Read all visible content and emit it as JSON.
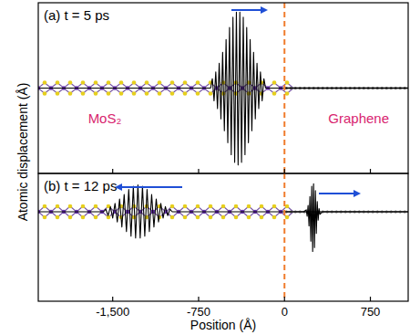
{
  "chart_data": [
    {
      "type": "line",
      "title": "(a) t = 5 ps",
      "ylabel": "Atomic displacement (Å)",
      "region_labels": [
        "MoS₂",
        "Graphene"
      ],
      "x": [
        -2150,
        -645,
        -630,
        -615,
        -600,
        -585,
        -570,
        -555,
        -540,
        -525,
        -510,
        -495,
        -480,
        -465,
        -450,
        -435,
        -420,
        -405,
        -390,
        -375,
        -360,
        -345,
        -330,
        -315,
        -300,
        -285,
        -270,
        -255,
        -240,
        -225,
        -210,
        -195,
        -180,
        -165,
        1080
      ],
      "series": [
        {
          "color": "#000000",
          "values": [
            0,
            0,
            0.11,
            -0.15,
            0.19,
            -0.24,
            0.29,
            -0.36,
            0.42,
            -0.5,
            0.57,
            -0.64,
            0.71,
            -0.78,
            0.83,
            -0.87,
            0.89,
            -0.9,
            0.89,
            -0.87,
            0.83,
            -0.78,
            0.71,
            -0.64,
            0.57,
            -0.5,
            0.42,
            -0.36,
            0.29,
            -0.24,
            0.19,
            -0.15,
            0.11,
            0,
            0
          ]
        }
      ],
      "xlim": [
        -2150,
        1080
      ],
      "ylim": [
        -1,
        1
      ],
      "xticks": [
        -1500,
        -750,
        0,
        750
      ],
      "tick_labels": false,
      "grid": false,
      "reference_line": {
        "x": 0,
        "color": "#f07c2c",
        "line_style": "dashed"
      }
    },
    {
      "type": "line",
      "title": "(b) t = 12 ps",
      "xlabel": "Position (Å)",
      "x": [
        -2150,
        -1580,
        -1560,
        -1540,
        -1520,
        -1500,
        -1480,
        -1460,
        -1440,
        -1420,
        -1400,
        -1380,
        -1360,
        -1340,
        -1320,
        -1300,
        -1280,
        -1260,
        -1240,
        -1220,
        -1200,
        -1180,
        -1160,
        -1140,
        -1120,
        -1100,
        -1080,
        -1060,
        -1040,
        -1020,
        -1000,
        -980,
        170,
        190,
        198,
        206,
        214,
        222,
        230,
        238,
        246,
        254,
        262,
        270,
        278,
        286,
        294,
        302,
        310,
        330,
        1080
      ],
      "series": [
        {
          "color": "#000000",
          "values": [
            0,
            0,
            0.04,
            -0.06,
            0.08,
            -0.1,
            0.13,
            -0.16,
            0.2,
            -0.24,
            0.27,
            -0.31,
            0.35,
            -0.38,
            0.4,
            -0.41,
            0.42,
            -0.41,
            0.4,
            -0.38,
            0.35,
            -0.31,
            0.27,
            -0.24,
            0.2,
            -0.16,
            0.13,
            -0.1,
            0.08,
            -0.06,
            0.04,
            0,
            0,
            0.03,
            -0.07,
            0.1,
            -0.22,
            0.24,
            -0.46,
            0.4,
            -0.62,
            0.44,
            -0.56,
            0.33,
            -0.34,
            0.16,
            -0.13,
            0.05,
            -0.04,
            0,
            0
          ]
        }
      ],
      "xlim": [
        -2150,
        1080
      ],
      "ylim": [
        -1.4,
        0.6
      ],
      "xticks": [
        {
          "value": -1500,
          "label": "-1,500"
        },
        -750,
        0,
        750
      ],
      "tick_labels": "x",
      "grid": false,
      "reference_line": {
        "x": 0,
        "color": "#f07c2c",
        "line_style": "dashed"
      }
    }
  ]
}
